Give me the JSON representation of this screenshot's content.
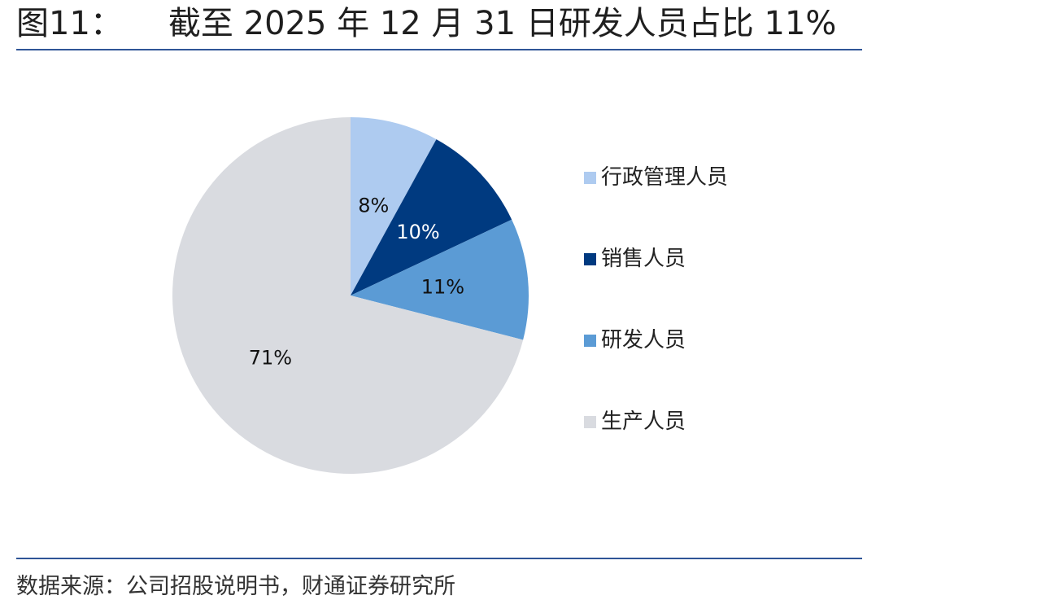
{
  "title": {
    "label": "图11：",
    "text": "截至 2025 年 12 月 31 日研发人员占比 11%"
  },
  "source": "数据来源：公司招股说明书，财通证券研究所",
  "colors": {
    "rule": "#2f5597",
    "slice_admin": "#aecbf0",
    "slice_sales": "#003a80",
    "slice_rd": "#5b9bd5",
    "slice_production": "#d9dbe0"
  },
  "chart_data": {
    "type": "pie",
    "title": "截至 2025 年 12 月 31 日研发人员占比 11%",
    "legend_position": "right",
    "slices": [
      {
        "label": "行政管理人员",
        "value": 8,
        "display": "8%",
        "color": "#aecbf0",
        "label_color": "#111111"
      },
      {
        "label": "销售人员",
        "value": 10,
        "display": "10%",
        "color": "#003a80",
        "label_color": "#ffffff"
      },
      {
        "label": "研发人员",
        "value": 11,
        "display": "11%",
        "color": "#5b9bd5",
        "label_color": "#111111"
      },
      {
        "label": "生产人员",
        "value": 71,
        "display": "71%",
        "color": "#d9dbe0",
        "label_color": "#111111"
      }
    ]
  }
}
